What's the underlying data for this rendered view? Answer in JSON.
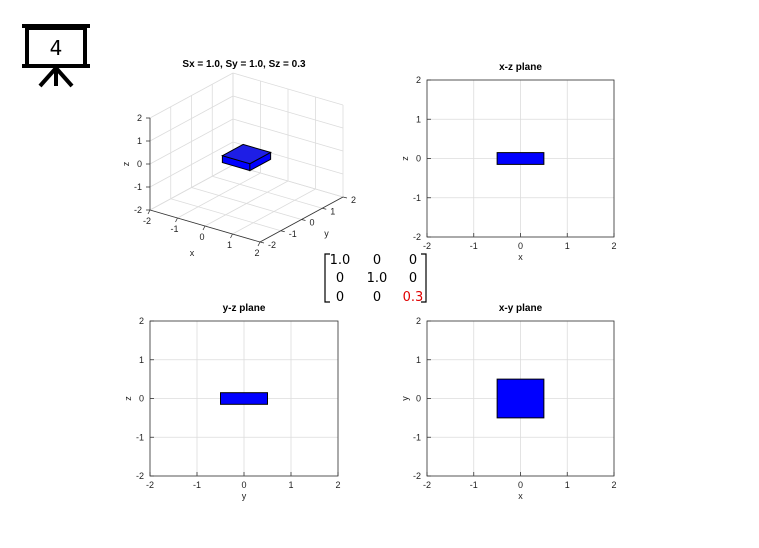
{
  "slide_number": "4",
  "colors": {
    "box_face": "#0000ff",
    "box_top": "#1e1ee6",
    "grid": "#dcdcdc",
    "highlight": "#e00000"
  },
  "icons": {
    "slide": "projector-screen-icon"
  },
  "matrix": {
    "rows": [
      [
        "1.0",
        "0",
        "0"
      ],
      [
        "0",
        "1.0",
        "0"
      ],
      [
        "0",
        "0",
        "0.3"
      ]
    ],
    "highlight_cell": [
      2,
      2
    ]
  },
  "chart_data": [
    {
      "type": "3d-box",
      "title": "Sx = 1.0, Sy = 1.0, Sz = 0.3",
      "xlabel": "x",
      "ylabel": "y",
      "zlabel": "z",
      "xlim": [
        -2,
        2
      ],
      "ylim": [
        -2,
        2
      ],
      "zlim": [
        -2,
        2
      ],
      "xticks": [
        "-2",
        "-1",
        "0",
        "1",
        "2"
      ],
      "yticks": [
        "-2",
        "-1",
        "0",
        "1",
        "2"
      ],
      "zticks": [
        "-2",
        "-1",
        "0",
        "1",
        "2"
      ],
      "box": {
        "x": [
          -0.5,
          0.5
        ],
        "y": [
          -0.5,
          0.5
        ],
        "z": [
          -0.15,
          0.15
        ]
      },
      "grid": true
    },
    {
      "type": "rect-projection",
      "title": "x-z plane",
      "xlabel": "x",
      "ylabel": "z",
      "xlim": [
        -2,
        2
      ],
      "ylim": [
        -2,
        2
      ],
      "xticks": [
        "-2",
        "-1",
        "0",
        "1",
        "2"
      ],
      "yticks": [
        "-2",
        "-1",
        "0",
        "1",
        "2"
      ],
      "rect": {
        "x": [
          -0.5,
          0.5
        ],
        "y": [
          -0.15,
          0.15
        ]
      },
      "grid": true
    },
    {
      "type": "rect-projection",
      "title": "y-z plane",
      "xlabel": "y",
      "ylabel": "z",
      "xlim": [
        -2,
        2
      ],
      "ylim": [
        -2,
        2
      ],
      "xticks": [
        "-2",
        "-1",
        "0",
        "1",
        "2"
      ],
      "yticks": [
        "-2",
        "-1",
        "0",
        "1",
        "2"
      ],
      "rect": {
        "x": [
          -0.5,
          0.5
        ],
        "y": [
          -0.15,
          0.15
        ]
      },
      "grid": true
    },
    {
      "type": "rect-projection",
      "title": "x-y plane",
      "xlabel": "x",
      "ylabel": "y",
      "xlim": [
        -2,
        2
      ],
      "ylim": [
        -2,
        2
      ],
      "xticks": [
        "-2",
        "-1",
        "0",
        "1",
        "2"
      ],
      "yticks": [
        "-2",
        "-1",
        "0",
        "1",
        "2"
      ],
      "rect": {
        "x": [
          -0.5,
          0.5
        ],
        "y": [
          -0.5,
          0.5
        ]
      },
      "grid": true
    }
  ]
}
